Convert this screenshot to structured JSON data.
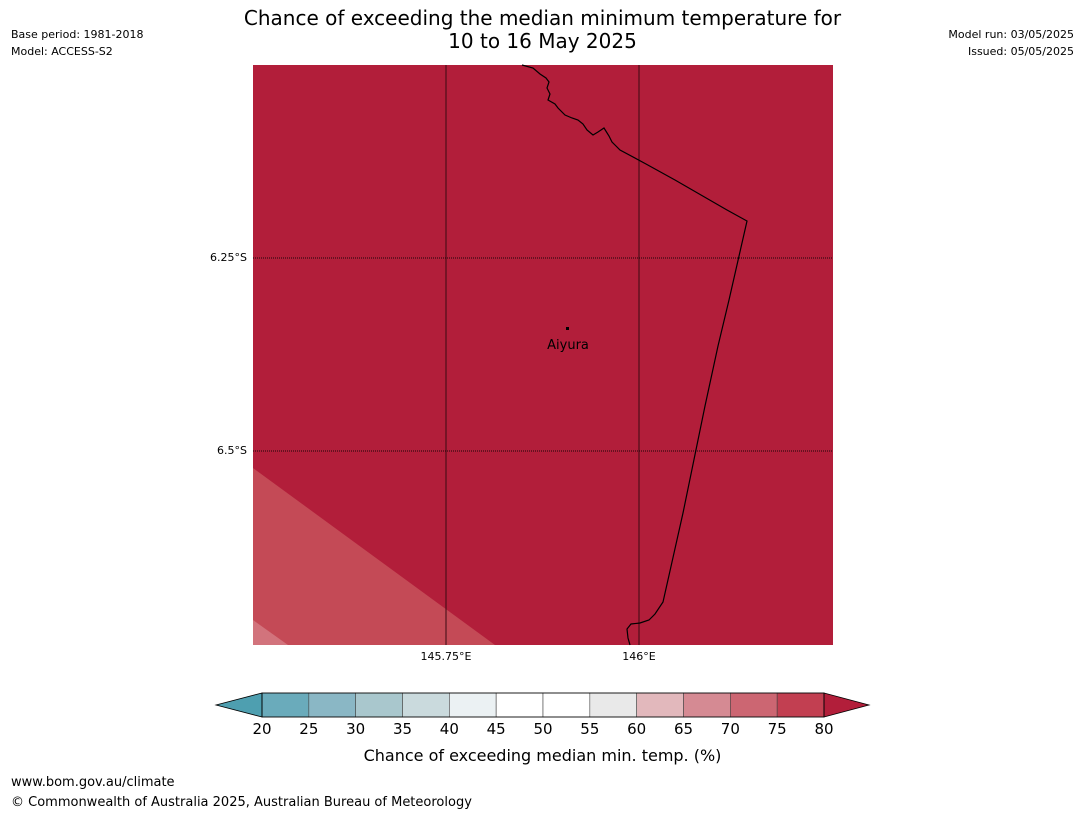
{
  "title": {
    "line1": "Chance of exceeding the median minimum temperature for",
    "line2": "10 to 16 May 2025"
  },
  "meta": {
    "base_period": "Base period: 1981-2018",
    "model": "Model: ACCESS-S2",
    "model_run": "Model run: 03/05/2025",
    "issued": "Issued: 05/05/2025"
  },
  "map": {
    "lat_labels": [
      "6.25°S",
      "6.5°S"
    ],
    "lon_labels": [
      "145.75°E",
      "146°E"
    ],
    "place": {
      "name": "Aiyura",
      "marker": "dot-marker"
    },
    "colors": {
      "main": "#b21e3a",
      "band70": "#c44a56",
      "band65": "#d2737c"
    }
  },
  "colorbar": {
    "label": "Chance of exceeding median min. temp. (%)",
    "ticks": [
      "20",
      "25",
      "30",
      "35",
      "40",
      "45",
      "50",
      "55",
      "60",
      "65",
      "70",
      "75",
      "80"
    ],
    "colors": [
      "#6aabbb",
      "#8ab7c5",
      "#a9c7cd",
      "#cadadd",
      "#ebf1f3",
      "#ffffff",
      "#ffffff",
      "#e9e9e9",
      "#e2b8bc",
      "#d58a93",
      "#cc6672",
      "#c23f51"
    ],
    "under_color": "#4e9fb0",
    "over_color": "#b21e3a"
  },
  "footer": {
    "url": "www.bom.gov.au/climate",
    "copyright": "© Commonwealth of Australia 2025, Australian Bureau of Meteorology"
  }
}
